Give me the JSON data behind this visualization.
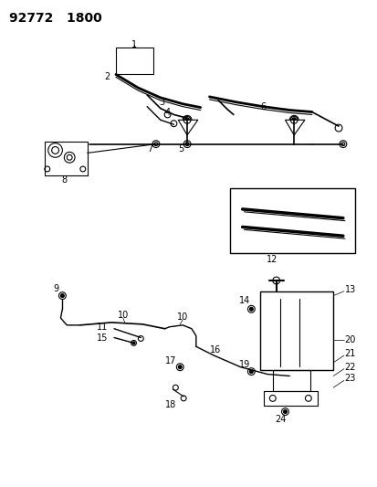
{
  "title": "92772   1800",
  "bg_color": "#ffffff",
  "line_color": "#000000",
  "fig_width": 4.14,
  "fig_height": 5.33,
  "dpi": 100
}
